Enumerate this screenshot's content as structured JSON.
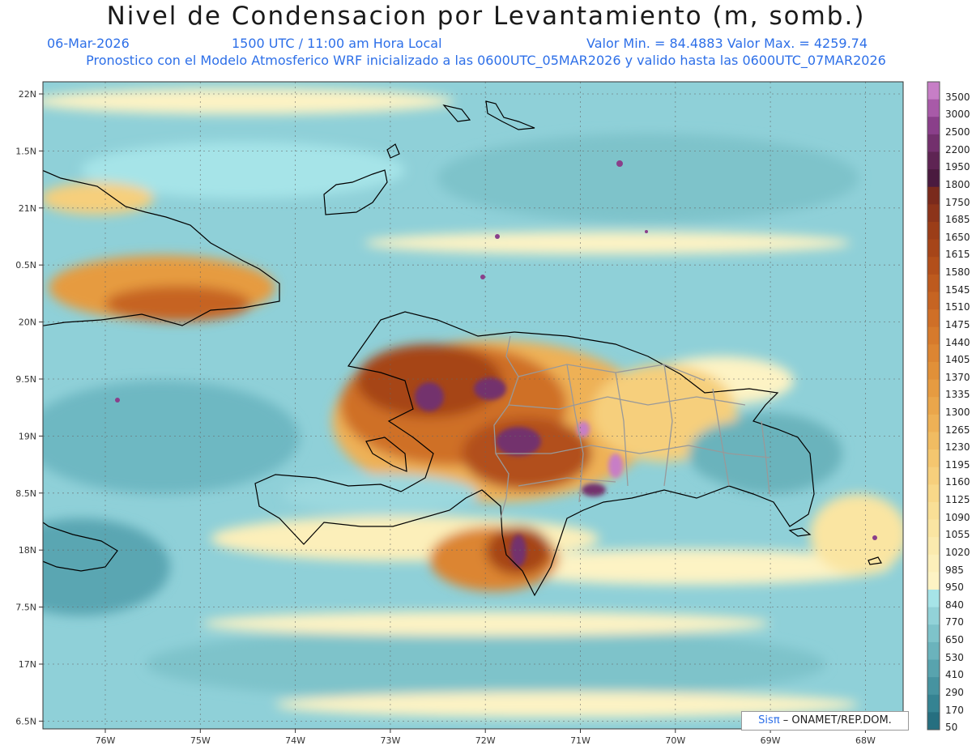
{
  "title": "Nivel de Condensacion por Levantamiento (m, somb.)",
  "header": {
    "date": "06-Mar-2026",
    "time": "1500 UTC / 11:00 am Hora Local",
    "minmax": "Valor Min. = 84.4883  Valor Max. = 4259.74",
    "init": "Pronostico con el Modelo Atmosferico WRF inicializado a las 0600UTC_05MAR2026 y valido hasta las  0600UTC_07MAR2026"
  },
  "map": {
    "lat_ticks": [
      "22N",
      "1.5N",
      "21N",
      "0.5N",
      "20N",
      "9.5N",
      "19N",
      "8.5N",
      "18N",
      "7.5N",
      "17N",
      "6.5N"
    ],
    "lon_ticks": [
      "76W",
      "75W",
      "74W",
      "73W",
      "72W",
      "71W",
      "70W",
      "69W",
      "68W"
    ],
    "grid": true,
    "coastline_color": "#000000",
    "border_color": "#999999"
  },
  "colorbar": {
    "labels": [
      "3500",
      "3000",
      "2500",
      "2200",
      "1950",
      "1800",
      "1750",
      "1685",
      "1650",
      "1615",
      "1580",
      "1545",
      "1510",
      "1475",
      "1440",
      "1405",
      "1370",
      "1335",
      "1300",
      "1265",
      "1230",
      "1195",
      "1160",
      "1125",
      "1090",
      "1055",
      "1020",
      "985",
      "950",
      "840",
      "770",
      "650",
      "530",
      "410",
      "290",
      "170",
      "50"
    ],
    "colors": [
      "#c77ec6",
      "#a85aa8",
      "#8a3f8a",
      "#73306d",
      "#5e2453",
      "#4a1a3f",
      "#7a2a1c",
      "#8c341a",
      "#9b3d18",
      "#a64519",
      "#b24f1b",
      "#bd5a1e",
      "#c66422",
      "#cf6f27",
      "#d67a2c",
      "#dc8532",
      "#e19038",
      "#e69b41",
      "#eaa64b",
      "#eeb156",
      "#f1bc62",
      "#f4c66f",
      "#f6cf7c",
      "#f8d889",
      "#f9df96",
      "#fae5a2",
      "#fbeaae",
      "#fcefba",
      "#fdf3c4",
      "#a6e4e8",
      "#92d2d8",
      "#7ec3ca",
      "#6bb3bc",
      "#58a3ae",
      "#4693a0",
      "#358392",
      "#266f80"
    ]
  },
  "credit": {
    "logo": "Sis",
    "pi": "π",
    "text": "– ONAMET/REP.DOM."
  }
}
